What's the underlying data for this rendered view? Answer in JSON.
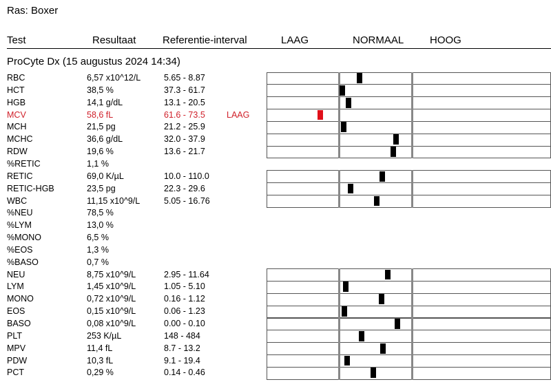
{
  "breed": "Ras: Boxer",
  "header": {
    "test": "Test",
    "result": "Resultaat",
    "range": "Referentie-interval",
    "low": "LAAG",
    "normal": "NORMAAL",
    "high": "HOOG"
  },
  "section": "ProCyte Dx (15 augustus 2024 14:34)",
  "rows": [
    {
      "test": "RBC",
      "result": "6,57 x10^12/L",
      "range": "5.65 - 8.87"
    },
    {
      "test": "HCT",
      "result": "38,5 %",
      "range": "37.3 - 61.7"
    },
    {
      "test": "HGB",
      "result": "14,1 g/dL",
      "range": "13.1 - 20.5"
    },
    {
      "test": "MCV",
      "result": "58,6 fL",
      "range": "61.6 - 73.5",
      "flag": "LAAG"
    },
    {
      "test": "MCH",
      "result": "21,5 pg",
      "range": "21.2 - 25.9"
    },
    {
      "test": "MCHC",
      "result": "36,6 g/dL",
      "range": "32.0 - 37.9"
    },
    {
      "test": "RDW",
      "result": "19,6 %",
      "range": "13.6 - 21.7"
    },
    {
      "test": "%RETIC",
      "result": "1,1 %"
    },
    {
      "test": "RETIC",
      "result": "69,0 K/µL",
      "range": "10.0 - 110.0"
    },
    {
      "test": "RETIC-HGB",
      "result": "23,5 pg",
      "range": "22.3 - 29.6"
    },
    {
      "test": "WBC",
      "result": "11,15 x10^9/L",
      "range": "5.05 - 16.76"
    },
    {
      "test": "%NEU",
      "result": "78,5 %"
    },
    {
      "test": "%LYM",
      "result": "13,0 %"
    },
    {
      "test": "%MONO",
      "result": "6,5 %"
    },
    {
      "test": "%EOS",
      "result": "1,3 %"
    },
    {
      "test": "%BASO",
      "result": "0,7 %"
    },
    {
      "test": "NEU",
      "result": "8,75 x10^9/L",
      "range": "2.95 - 11.64"
    },
    {
      "test": "LYM",
      "result": "1,45 x10^9/L",
      "range": "1.05 - 5.10"
    },
    {
      "test": "MONO",
      "result": "0,72 x10^9/L",
      "range": "0.16 - 1.12"
    },
    {
      "test": "EOS",
      "result": "0,15 x10^9/L",
      "range": "0.06 - 1.23"
    },
    {
      "test": "BASO",
      "result": "0,08 x10^9/L",
      "range": "0.00 - 0.10"
    },
    {
      "test": "PLT",
      "result": "253 K/µL",
      "range": "148 - 484"
    },
    {
      "test": "MPV",
      "result": "11,4 fL",
      "range": "8.7 - 13.2"
    },
    {
      "test": "PDW",
      "result": "10,3 fL",
      "range": "9.1 - 19.4"
    },
    {
      "test": "PCT",
      "result": "0,29 %",
      "range": "0.14 - 0.46"
    }
  ]
}
